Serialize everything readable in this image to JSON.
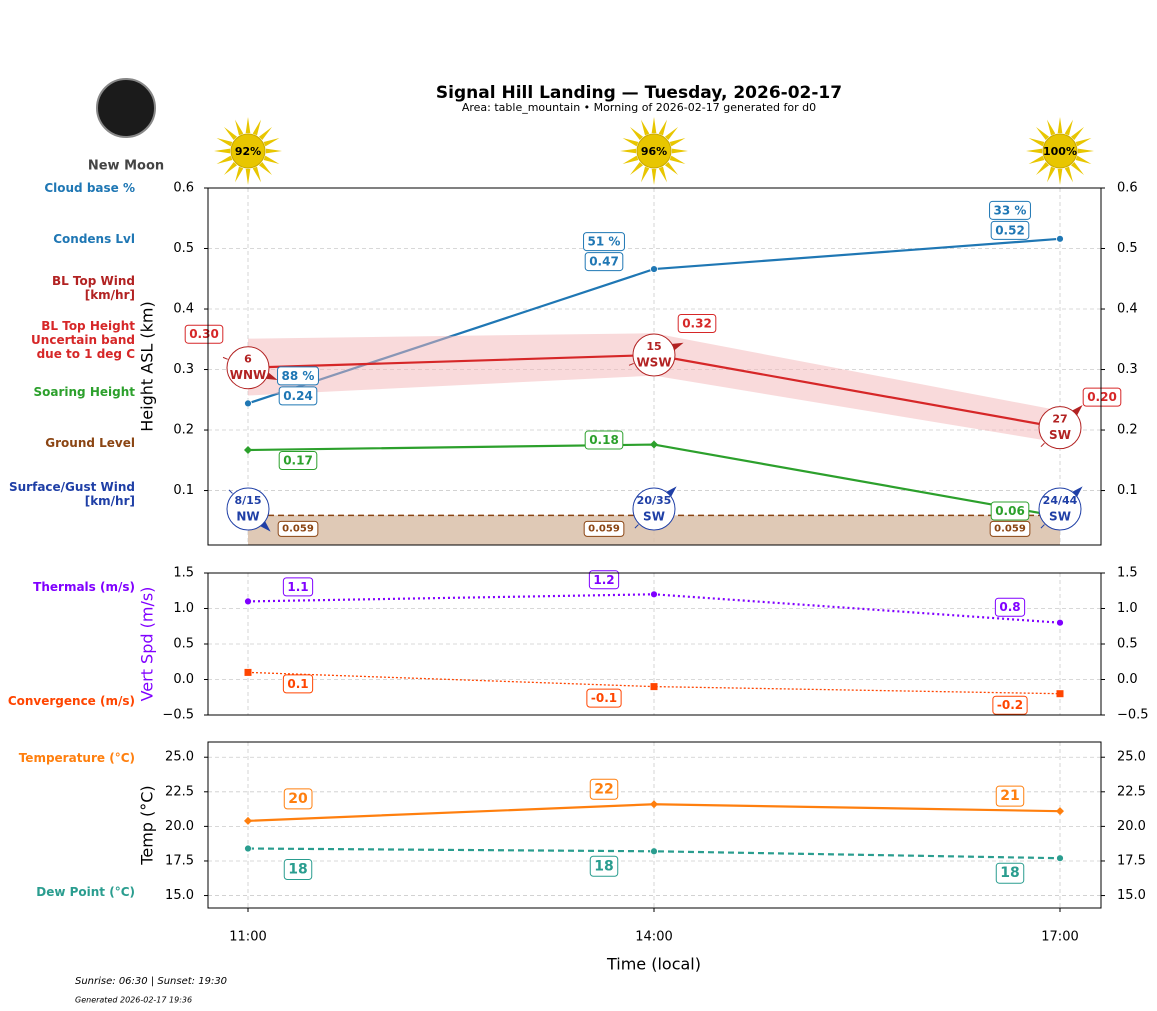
{
  "title": "Signal Hill Landing — Tuesday, 2026-02-17",
  "subtitle": "Area: table_mountain • Morning of 2026-02-17 generated for d0",
  "moon_phase": "New Moon",
  "sun_labels": [
    "92%",
    "96%",
    "100%"
  ],
  "footer": {
    "sun_times": "Sunrise: 06:30 | Sunset: 19:30",
    "generated": "Generated 2026-02-17 19:36"
  },
  "chart_data": [
    {
      "type": "line",
      "ylabel": "Height ASL (km)",
      "grid": true,
      "ylim": [
        0.01,
        0.6
      ],
      "yticks": [
        0.1,
        0.2,
        0.3,
        0.4,
        0.5,
        0.6
      ],
      "y2lim": [
        0.01,
        0.6
      ],
      "y2ticks": [
        0.1,
        0.2,
        0.3,
        0.4,
        0.5,
        0.6
      ],
      "cloud_base": {
        "name": "Cloud base %",
        "color": "#1f77b4",
        "labels": [
          "88 %",
          "51 %",
          "33 %"
        ]
      },
      "series": [
        {
          "name": "Condens Lvl",
          "color": "#1f77b4",
          "line_style": "solid",
          "marker": "circle",
          "values": [
            0.244,
            0.466,
            0.516
          ],
          "value_labels": [
            "0.24",
            "0.47",
            "0.52"
          ]
        },
        {
          "name": "BL Top Height\nUncertain band\ndue to 1 deg C",
          "color": "#d62728",
          "line_style": "solid",
          "values": [
            0.303,
            0.324,
            0.204
          ],
          "value_labels": [
            "0.30",
            "0.32",
            "0.20"
          ],
          "lower": [
            0.257,
            0.29,
            0.179
          ],
          "upper": [
            0.351,
            0.36,
            0.232
          ],
          "band_color": "#f4b6b8"
        },
        {
          "name": "Soaring Height",
          "color": "#2ca02c",
          "line_style": "solid",
          "marker": "diamond",
          "values": [
            0.167,
            0.176,
            0.057
          ],
          "value_labels": [
            "0.17",
            "0.18",
            "0.06"
          ]
        },
        {
          "name": "Ground Level",
          "color": "#8b4513",
          "line_style": "dashed",
          "fill": "#d9bfa9",
          "values": [
            0.059,
            0.059,
            0.059
          ]
        }
      ],
      "winds": [
        {
          "name": "BL Top Wind\n[km/hr]",
          "color": "#b22222",
          "speeds": [
            6,
            15,
            27
          ],
          "directions": [
            "WNW",
            "WSW",
            "SW"
          ]
        },
        {
          "name": "Surface/Gust Wind\n[km/hr]",
          "color": "#1f3fa6",
          "speeds": [
            "8/15",
            "20/35",
            "24/44"
          ],
          "directions": [
            "NW",
            "SW",
            "SW"
          ]
        }
      ]
    },
    {
      "type": "line",
      "ylabel": "Vert Spd (m/s)",
      "ylabel_color": "#8000ff",
      "grid": true,
      "ylim": [
        -0.5,
        1.5
      ],
      "yticks": [
        {
          "value": -0.5,
          "label": "−0.5"
        },
        {
          "value": 0,
          "label": "0.0"
        },
        0.5,
        {
          "value": 1,
          "label": "1.0"
        },
        1.5
      ],
      "y2lim": [
        -0.5,
        1.5
      ],
      "y2ticks": [
        {
          "value": -0.5,
          "label": "−0.5"
        },
        {
          "value": 0,
          "label": "0.0"
        },
        0.5,
        {
          "value": 1,
          "label": "1.0"
        },
        1.5
      ],
      "series": [
        {
          "name": "Thermals (m/s)",
          "color": "#8000ff",
          "line_style": "dotted",
          "marker": "circle",
          "values": [
            1.1,
            1.2,
            0.8
          ]
        },
        {
          "name": "Convergence (m/s)",
          "color": "#ff4500",
          "line_style": "dotted-thin",
          "marker": "square",
          "values": [
            0.1,
            -0.1,
            -0.2
          ]
        }
      ]
    },
    {
      "type": "line",
      "ylabel": "Temp (°C)",
      "grid": true,
      "xlabel": "Time (local)",
      "categories": [
        "11:00",
        "14:00",
        "17:00"
      ],
      "ylim": [
        14.1,
        26.1
      ],
      "yticks": [
        {
          "value": 15,
          "label": "15.0"
        },
        17.5,
        {
          "value": 20,
          "label": "20.0"
        },
        22.5,
        {
          "value": 25,
          "label": "25.0"
        }
      ],
      "y2lim": [
        14.1,
        26.1
      ],
      "y2ticks": [
        {
          "value": 15,
          "label": "15.0"
        },
        17.5,
        {
          "value": 20,
          "label": "20.0"
        },
        22.5,
        {
          "value": 25,
          "label": "25.0"
        }
      ],
      "series": [
        {
          "name": "Temperature (°C)",
          "color": "#ff7f0e",
          "line_style": "solid",
          "marker": "diamond",
          "values": [
            20.4,
            21.6,
            21.1
          ],
          "value_labels": [
            "20",
            "22",
            "21"
          ]
        },
        {
          "name": "Dew Point (°C)",
          "color": "#2a9d8f",
          "line_style": "dashed",
          "marker": "circle",
          "values": [
            18.4,
            18.2,
            17.7
          ],
          "value_labels": [
            "18",
            "18",
            "18"
          ]
        }
      ]
    }
  ]
}
